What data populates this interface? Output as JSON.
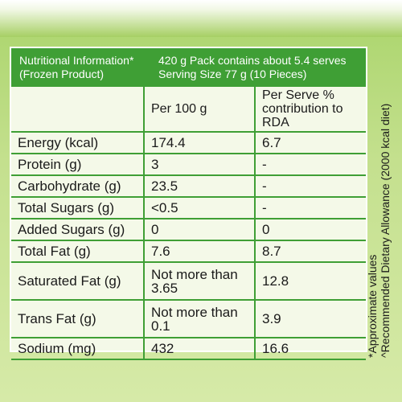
{
  "header": {
    "left_line1": "Nutritional Information*",
    "left_line2": "(Frozen Product)",
    "right_line1": "420 g Pack contains about 5.4 serves",
    "right_line2": "Serving Size 77 g (10 Pieces)"
  },
  "table": {
    "col_headers": [
      "",
      "Per 100 g",
      "Per Serve %\ncontribution to RDA"
    ],
    "rows": [
      {
        "name": "Energy (kcal)",
        "per100": "174.4",
        "perServe": "6.7"
      },
      {
        "name": "Protein (g)",
        "per100": "3",
        "perServe": "-"
      },
      {
        "name": "Carbohydrate (g)",
        "per100": "23.5",
        "perServe": "-"
      },
      {
        "name": "Total Sugars (g)",
        "per100": "<0.5",
        "perServe": "-"
      },
      {
        "name": "Added Sugars (g)",
        "per100": "0",
        "perServe": "0"
      },
      {
        "name": "Total Fat (g)",
        "per100": "7.6",
        "perServe": "8.7"
      },
      {
        "name": "Saturated Fat (g)",
        "per100": "Not more than\n3.65",
        "perServe": "12.8"
      },
      {
        "name": "Trans Fat (g)",
        "per100": "Not more than\n0.1",
        "perServe": "3.9"
      },
      {
        "name": "Sodium (mg)",
        "per100": "432",
        "perServe": "16.6"
      }
    ]
  },
  "footnotes": {
    "line1": "*Approximate values",
    "line2": "^Recommended Dietary Allowance (2000 kcal diet)"
  },
  "colors": {
    "header_green": "#3f9f35",
    "panel_bg": "#f4f9e8",
    "package_green": "#a9d46a"
  }
}
